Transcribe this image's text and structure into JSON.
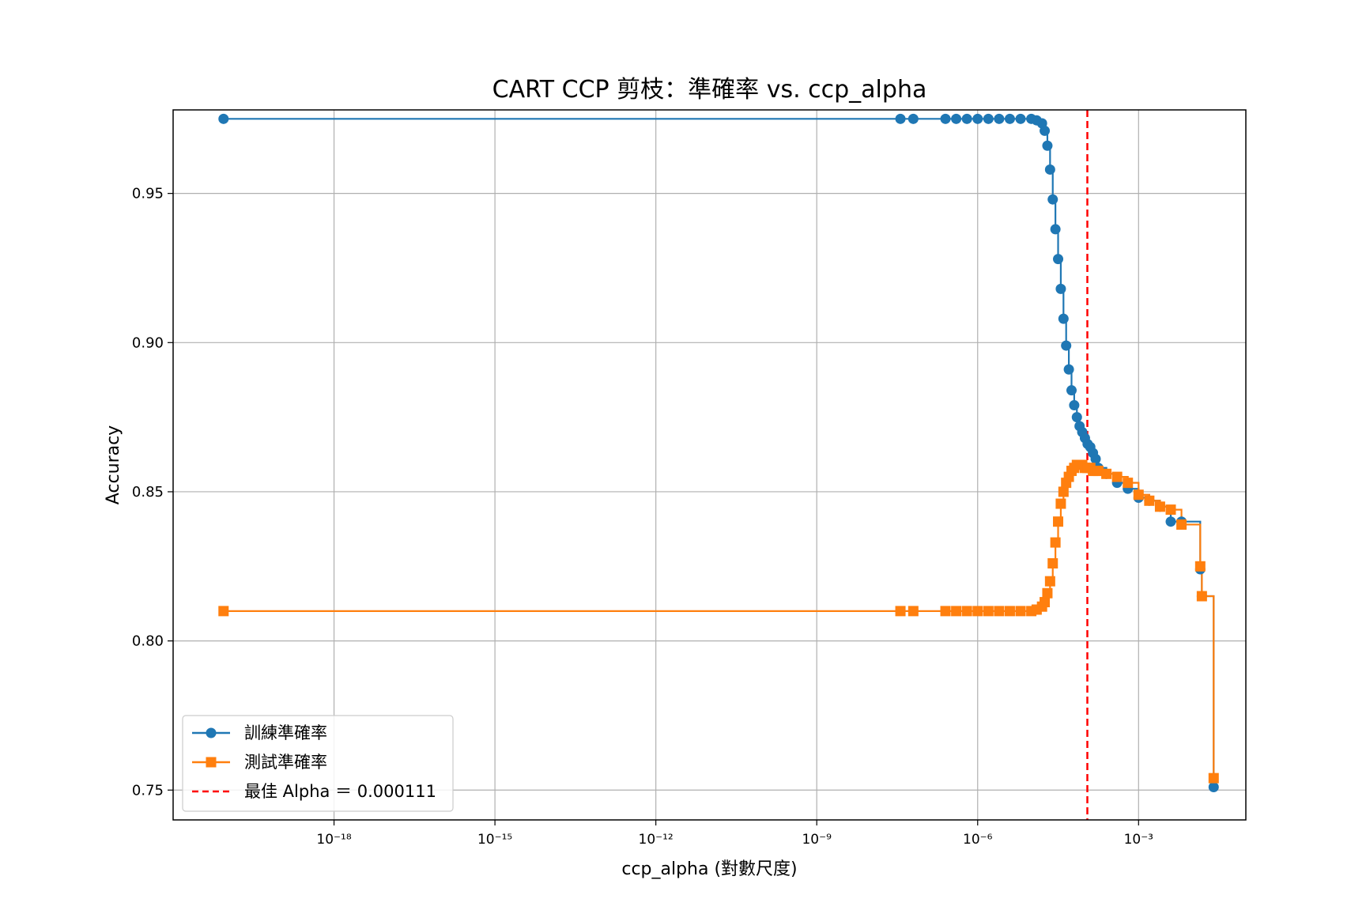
{
  "chart_data": {
    "type": "line",
    "title": "CART CCP 剪枝：準確率 vs. ccp_alpha",
    "xlabel": "ccp_alpha (對數尺度)",
    "ylabel": "Accuracy",
    "xscale": "log",
    "xlim_log10": [
      -21.0,
      -1.0
    ],
    "ylim": [
      0.74,
      0.978
    ],
    "grid": true,
    "legend_position": "lower-left",
    "x_ticks": [
      {
        "exp": -18,
        "label": "10⁻¹⁸"
      },
      {
        "exp": -15,
        "label": "10⁻¹⁵"
      },
      {
        "exp": -12,
        "label": "10⁻¹²"
      },
      {
        "exp": -9,
        "label": "10⁻⁹"
      },
      {
        "exp": -6,
        "label": "10⁻⁶"
      },
      {
        "exp": -3,
        "label": "10⁻³"
      }
    ],
    "y_ticks": [
      {
        "value": 0.75,
        "label": "0.75"
      },
      {
        "value": 0.8,
        "label": "0.80"
      },
      {
        "value": 0.85,
        "label": "0.85"
      },
      {
        "value": 0.9,
        "label": "0.90"
      },
      {
        "value": 0.95,
        "label": "0.95"
      }
    ],
    "series": [
      {
        "name": "訓練準確率",
        "color": "#1f77b4",
        "marker": "circle",
        "drawstyle": "steps-post",
        "log10_x": [
          -20.06,
          -7.44,
          -7.2,
          -6.6,
          -6.4,
          -6.2,
          -6.0,
          -5.8,
          -5.6,
          -5.4,
          -5.2,
          -5.0,
          -4.9,
          -4.8,
          -4.75,
          -4.7,
          -4.65,
          -4.6,
          -4.55,
          -4.5,
          -4.45,
          -4.4,
          -4.35,
          -4.3,
          -4.25,
          -4.2,
          -4.15,
          -4.1,
          -4.05,
          -4.0,
          -3.95,
          -3.9,
          -3.85,
          -3.8,
          -3.75,
          -3.6,
          -3.4,
          -3.2,
          -3.0,
          -2.8,
          -2.6,
          -2.4,
          -2.2,
          -1.85,
          -1.82,
          -1.6
        ],
        "y": [
          0.975,
          0.975,
          0.975,
          0.975,
          0.975,
          0.975,
          0.975,
          0.975,
          0.975,
          0.975,
          0.975,
          0.975,
          0.9745,
          0.9735,
          0.971,
          0.966,
          0.958,
          0.948,
          0.938,
          0.928,
          0.918,
          0.908,
          0.899,
          0.891,
          0.884,
          0.879,
          0.875,
          0.872,
          0.87,
          0.868,
          0.866,
          0.865,
          0.863,
          0.861,
          0.858,
          0.856,
          0.853,
          0.851,
          0.848,
          0.847,
          0.845,
          0.84,
          0.84,
          0.824,
          0.815,
          0.751
        ]
      },
      {
        "name": "測試準確率",
        "color": "#ff7f0e",
        "marker": "square",
        "drawstyle": "steps-post",
        "log10_x": [
          -20.06,
          -7.44,
          -7.2,
          -6.6,
          -6.4,
          -6.2,
          -6.0,
          -5.8,
          -5.6,
          -5.4,
          -5.2,
          -5.0,
          -4.9,
          -4.8,
          -4.75,
          -4.7,
          -4.65,
          -4.6,
          -4.55,
          -4.5,
          -4.45,
          -4.4,
          -4.35,
          -4.3,
          -4.25,
          -4.2,
          -4.15,
          -4.1,
          -4.05,
          -4.0,
          -3.95,
          -3.9,
          -3.85,
          -3.8,
          -3.75,
          -3.6,
          -3.4,
          -3.2,
          -3.0,
          -2.8,
          -2.6,
          -2.4,
          -2.2,
          -1.85,
          -1.82,
          -1.6
        ],
        "y": [
          0.81,
          0.81,
          0.81,
          0.81,
          0.81,
          0.81,
          0.81,
          0.81,
          0.81,
          0.81,
          0.81,
          0.81,
          0.8105,
          0.8115,
          0.813,
          0.816,
          0.82,
          0.826,
          0.833,
          0.84,
          0.846,
          0.85,
          0.853,
          0.855,
          0.857,
          0.858,
          0.859,
          0.859,
          0.859,
          0.858,
          0.858,
          0.858,
          0.857,
          0.857,
          0.857,
          0.856,
          0.855,
          0.853,
          0.849,
          0.847,
          0.845,
          0.844,
          0.839,
          0.825,
          0.815,
          0.754
        ]
      }
    ],
    "reference_lines": [
      {
        "name": "最佳 Alpha ＝ 0.000111",
        "log10_x": -3.955,
        "color": "#ff0000",
        "style": "dashed"
      }
    ]
  }
}
